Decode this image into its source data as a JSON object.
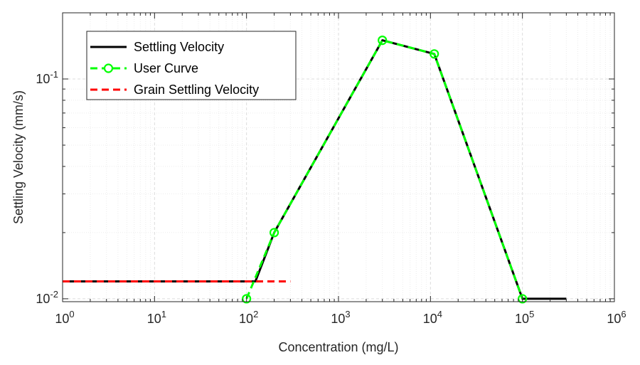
{
  "chart_data": {
    "type": "line",
    "title": "",
    "xlabel": "Concentration (mg/L)",
    "ylabel": "Settling Velocity (mm/s)",
    "xscale": "log",
    "yscale": "log",
    "xlim": [
      1,
      1000000
    ],
    "ylim": [
      0.0097,
      0.2
    ],
    "grid": true,
    "minor_grid": true,
    "legend_position": "top-left",
    "x_ticks": [
      {
        "base": "10",
        "exp": "0"
      },
      {
        "base": "10",
        "exp": "1"
      },
      {
        "base": "10",
        "exp": "2"
      },
      {
        "base": "10",
        "exp": "3"
      },
      {
        "base": "10",
        "exp": "4"
      },
      {
        "base": "10",
        "exp": "5"
      },
      {
        "base": "10",
        "exp": "6"
      }
    ],
    "x_tick_values": [
      1,
      10,
      100,
      1000,
      10000,
      100000,
      1000000
    ],
    "y_ticks": [
      {
        "base": "10",
        "exp": "-2"
      },
      {
        "base": "10",
        "exp": "-1"
      }
    ],
    "y_tick_values": [
      0.01,
      0.1
    ],
    "series": [
      {
        "name": "Settling Velocity",
        "color": "#000000",
        "style": "solid",
        "marker": "none",
        "x": [
          1,
          125,
          200,
          3000,
          11000,
          100000,
          300000
        ],
        "y": [
          0.012,
          0.012,
          0.02,
          0.15,
          0.13,
          0.01,
          0.01
        ]
      },
      {
        "name": "User Curve",
        "color": "#00ff00",
        "style": "dashed",
        "marker": "circle",
        "x": [
          100,
          200,
          3000,
          11000,
          100000
        ],
        "y": [
          0.01,
          0.02,
          0.15,
          0.13,
          0.01
        ]
      },
      {
        "name": "Grain Settling Velocity",
        "color": "#ff0000",
        "style": "dashed",
        "marker": "none",
        "x": [
          1,
          300
        ],
        "y": [
          0.012,
          0.012
        ]
      }
    ]
  }
}
